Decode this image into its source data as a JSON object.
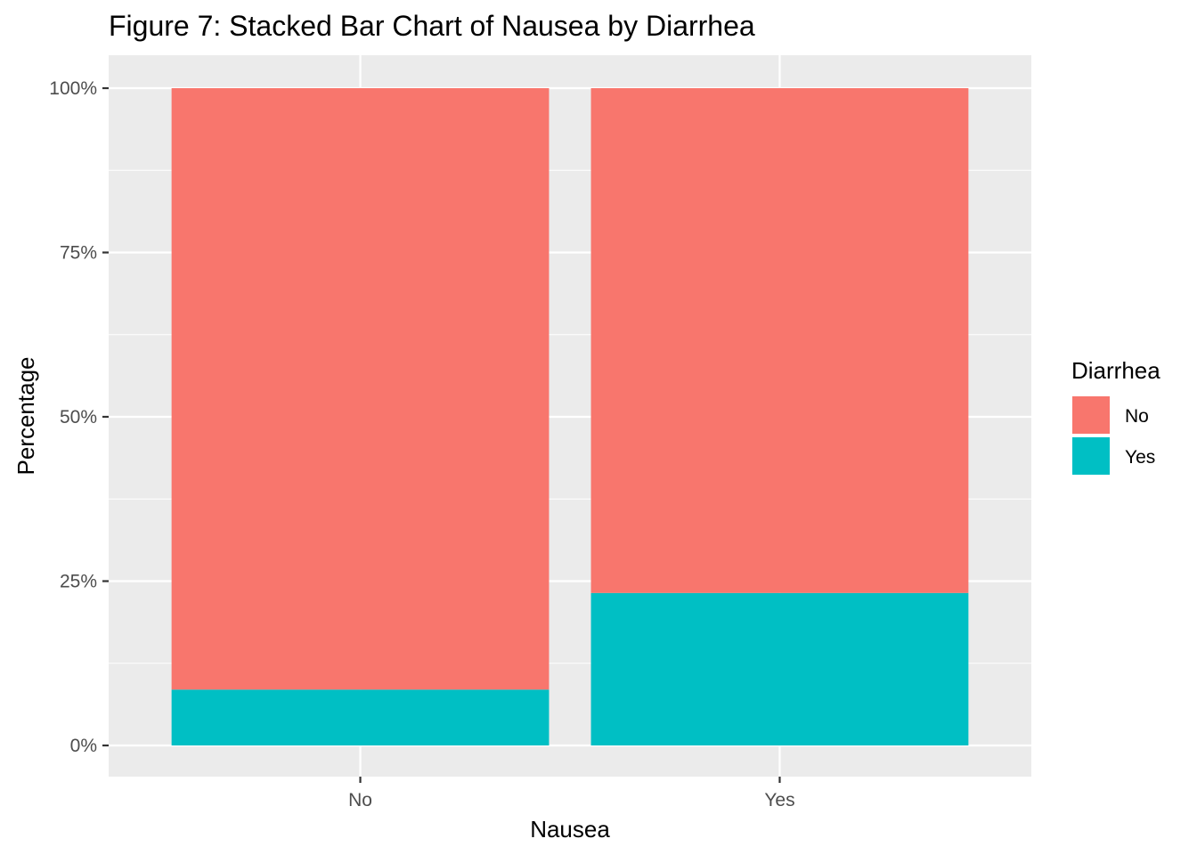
{
  "chart_data": {
    "type": "bar",
    "stacked": true,
    "title": "Figure 7: Stacked Bar Chart of Nausea by Diarrhea",
    "xlabel": "Nausea",
    "ylabel": "Percentage",
    "categories": [
      "No",
      "Yes"
    ],
    "series": [
      {
        "name": "No",
        "color": "#F8766D",
        "values": [
          0.915,
          0.768
        ]
      },
      {
        "name": "Yes",
        "color": "#00BFC4",
        "values": [
          0.085,
          0.232
        ]
      }
    ],
    "ylim": [
      0,
      1
    ],
    "yticks": [
      0,
      0.25,
      0.5,
      0.75,
      1
    ],
    "ytick_labels": [
      "0%",
      "25%",
      "50%",
      "75%",
      "100%"
    ],
    "grid": true,
    "legend": {
      "title": "Diarrhea",
      "position": "right",
      "entries": [
        "No",
        "Yes"
      ]
    },
    "colors": {
      "panel_background": "#EBEBEB",
      "grid": "#FFFFFF",
      "tick": "#333333"
    }
  }
}
